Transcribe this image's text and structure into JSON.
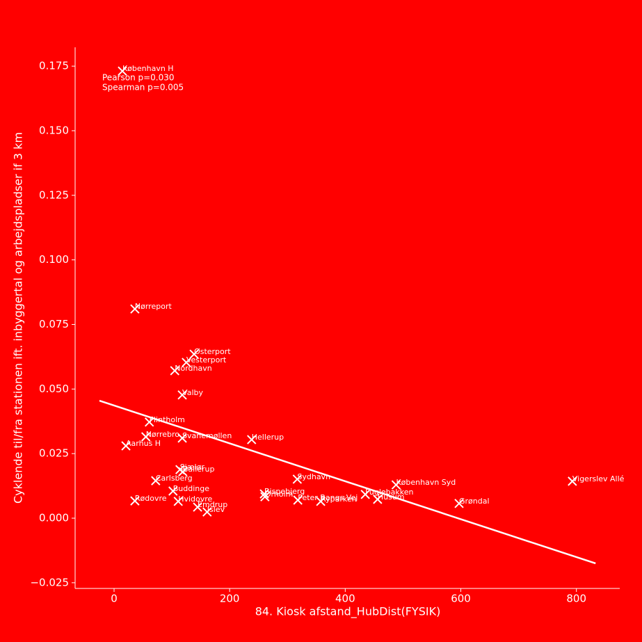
{
  "chart_data": {
    "type": "scatter",
    "x_label": "84. Kiosk afstand_HubDist(FYSIK)",
    "y_label": "Cyklende til/fra stationen ift. inbyggertal og arbejdspladser if 3 km",
    "annotations": [
      "Pearson p=0.030",
      "Spearman p=0.005"
    ],
    "background": "#ff0000",
    "color": "#ffffff",
    "grid": false,
    "xlim": [
      -67.4,
      875
    ],
    "ylim": [
      -0.0272,
      0.1823
    ],
    "xticks": [
      0,
      200,
      400,
      600,
      800
    ],
    "yticks": [
      {
        "value": -0.025,
        "label": "−0.025"
      },
      {
        "value": 0,
        "label": "0.000"
      },
      0.025,
      {
        "value": 0.05,
        "label": "0.050"
      },
      0.075,
      {
        "value": 0.1,
        "label": "0.100"
      },
      0.125,
      {
        "value": 0.15,
        "label": "0.150"
      },
      0.175
    ],
    "series": [
      {
        "name": "Stationer",
        "labels": [
          "København H",
          "Nørreport",
          "Østerport",
          "Vesterport",
          "Nordhavn",
          "Valby",
          "Flintholm",
          "Nørrebro",
          "Svanemøllen",
          "Aarhus H",
          "Hellerup",
          "Sjælør",
          "Ballerup",
          "Sydhavn",
          "København Syd",
          "Vigerslev Allé",
          "Carlsberg",
          "Buddinge",
          "Bispebjerg",
          "Ørholm",
          "Peter Bangs Vej",
          "Ryparken",
          "Fuglebakken",
          "Husum",
          "Grøndal",
          "Rødovre",
          "Hvidovre",
          "Emdrup",
          "Islev"
        ],
        "x": [
          14.4,
          36,
          138.5,
          125,
          105,
          118,
          61,
          55,
          118,
          20.5,
          238,
          114,
          119,
          317,
          488,
          793,
          72,
          102,
          260,
          261,
          318,
          357.6,
          434.7,
          456,
          597,
          36,
          111,
          144.5,
          161
        ],
        "values": [
          0.1731,
          0.081,
          0.0635,
          0.0603,
          0.0571,
          0.0477,
          0.0372,
          0.0315,
          0.031,
          0.028,
          0.0304,
          0.0188,
          0.018,
          0.0151,
          0.0129,
          0.0143,
          0.0145,
          0.0105,
          0.0094,
          0.0083,
          0.007,
          0.0065,
          0.0092,
          0.0073,
          0.0057,
          0.0067,
          0.0065,
          0.0043,
          0.0024
        ]
      }
    ],
    "fit": {
      "x": [
        -25.3,
        833.2
      ],
      "values": [
        0.0455,
        -0.0175
      ]
    }
  }
}
